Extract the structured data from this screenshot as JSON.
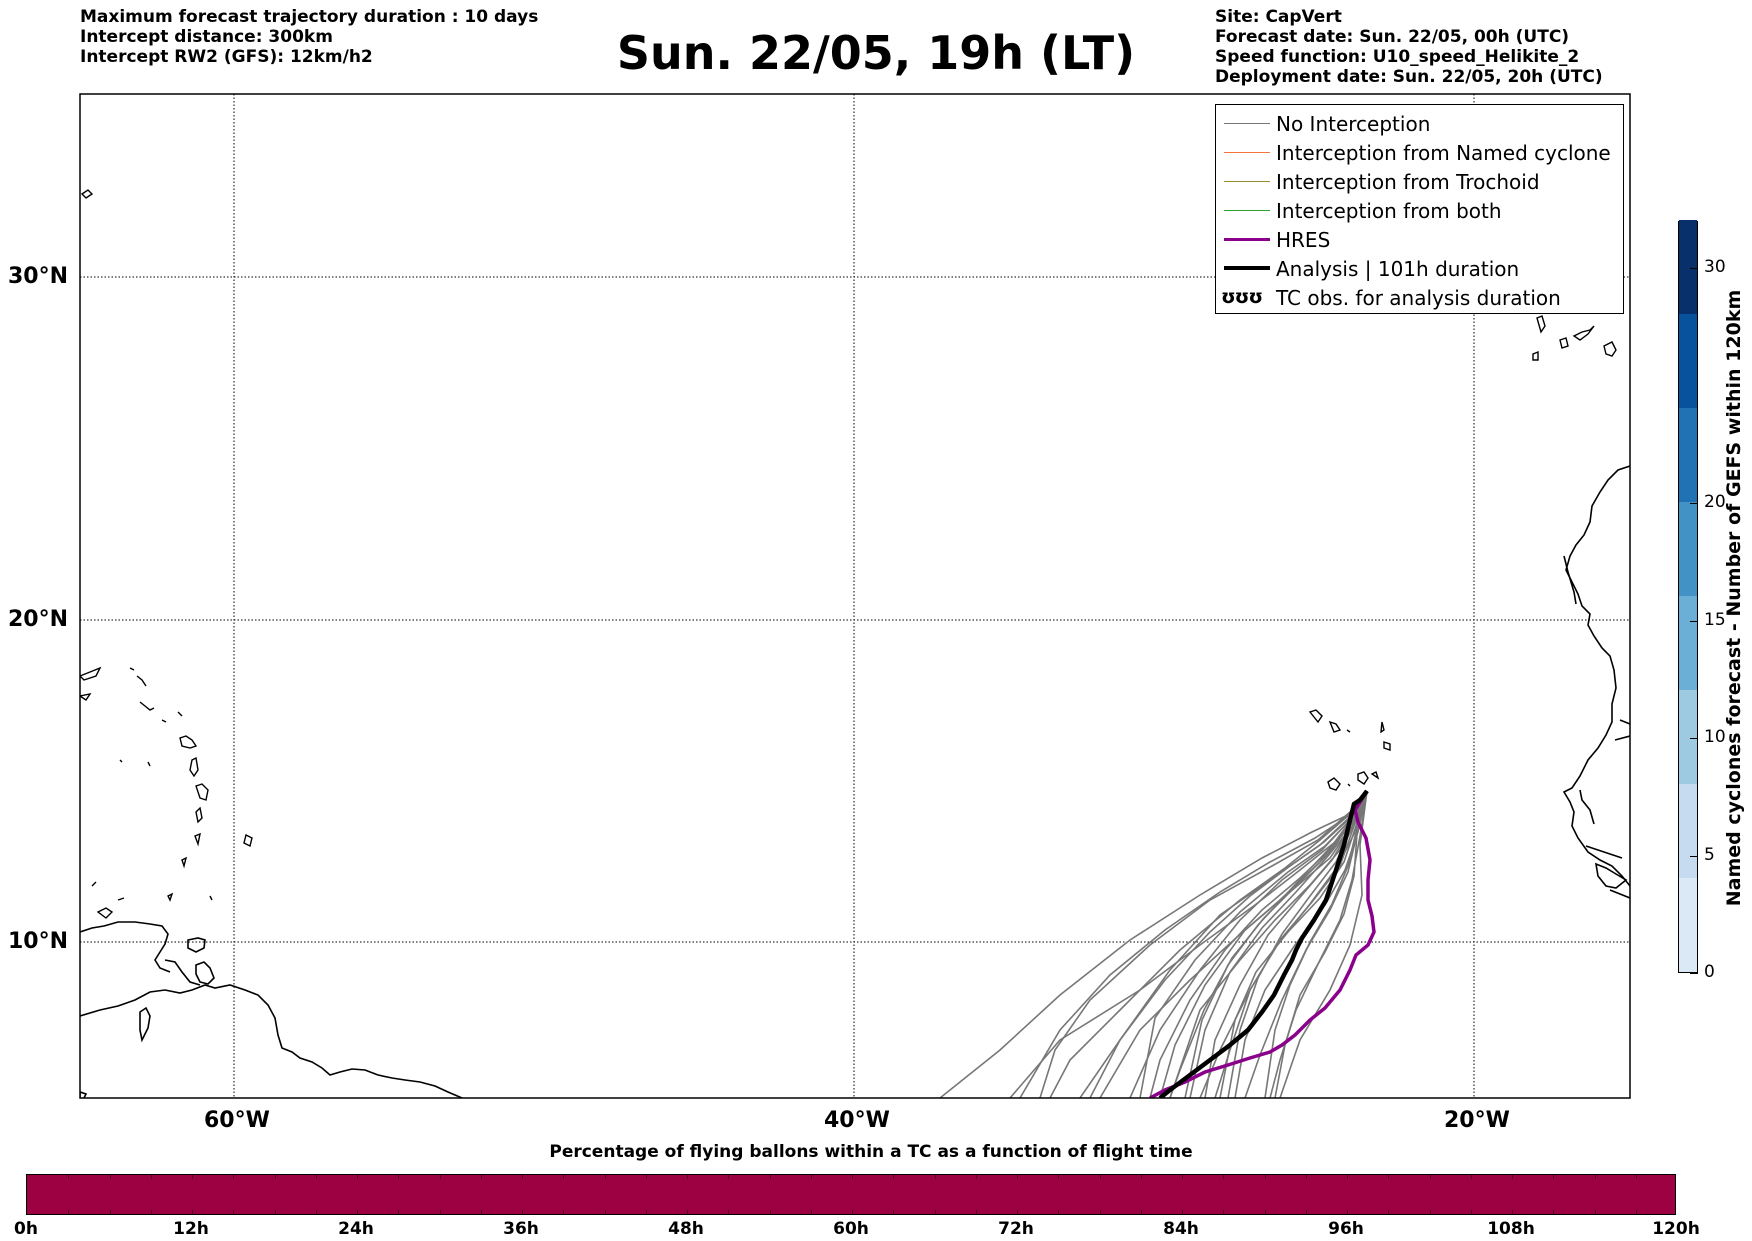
{
  "header": {
    "left_lines": [
      "Maximum forecast trajectory duration : 10 days",
      "Intercept distance: 300km",
      "Intercept RW2 (GFS):  12km/h2"
    ],
    "title": "Sun. 22/05, 19h (LT)",
    "right_lines": [
      "Site: CapVert",
      "Forecast date: Sun. 22/05, 00h (UTC)",
      "Speed function: U10_speed_Helikite_2",
      "Deployment date: Sun. 22/05, 20h (UTC)"
    ]
  },
  "map": {
    "lon_range": [
      -65,
      -15
    ],
    "lat_range": [
      5.2,
      34.5
    ],
    "lat_labels": [
      "30°N",
      "20°N",
      "10°N"
    ],
    "lon_labels": [
      "60°W",
      "40°W",
      "20°W"
    ],
    "grid": true
  },
  "legend": {
    "items": [
      {
        "label": "No Interception",
        "color": "#777777"
      },
      {
        "label": "Interception from Named cyclone",
        "color": "#f4743a"
      },
      {
        "label": "Interception from Trochoid",
        "color": "#9a8a2e"
      },
      {
        "label": "Interception from both",
        "color": "#2ca02c"
      },
      {
        "label": "HRES",
        "color": "#8b008b"
      },
      {
        "label": "Analysis | 101h duration",
        "color": "#000000"
      },
      {
        "label": "TC obs. for analysis duration",
        "symbol": "ʊʊʊ"
      }
    ]
  },
  "colorbar_vertical": {
    "title": "Named cyclones forecast - Number of GEFS within 120km",
    "ticks": [
      "0",
      "5",
      "10",
      "15",
      "20",
      "30"
    ],
    "tick_values": [
      0,
      5,
      10,
      15,
      20,
      30
    ],
    "max": 32,
    "colors": [
      "#dbe8f5",
      "#c6dbef",
      "#9ecae1",
      "#6baed6",
      "#4292c6",
      "#2171b5",
      "#08519c",
      "#08306b"
    ]
  },
  "colorbar_horizontal": {
    "title": "Percentage of flying ballons within a TC as a function of flight time",
    "ticks": [
      "0h",
      "12h",
      "24h",
      "36h",
      "48h",
      "60h",
      "72h",
      "84h",
      "96h",
      "108h",
      "120h"
    ],
    "fill_color": "#9e0142"
  }
}
